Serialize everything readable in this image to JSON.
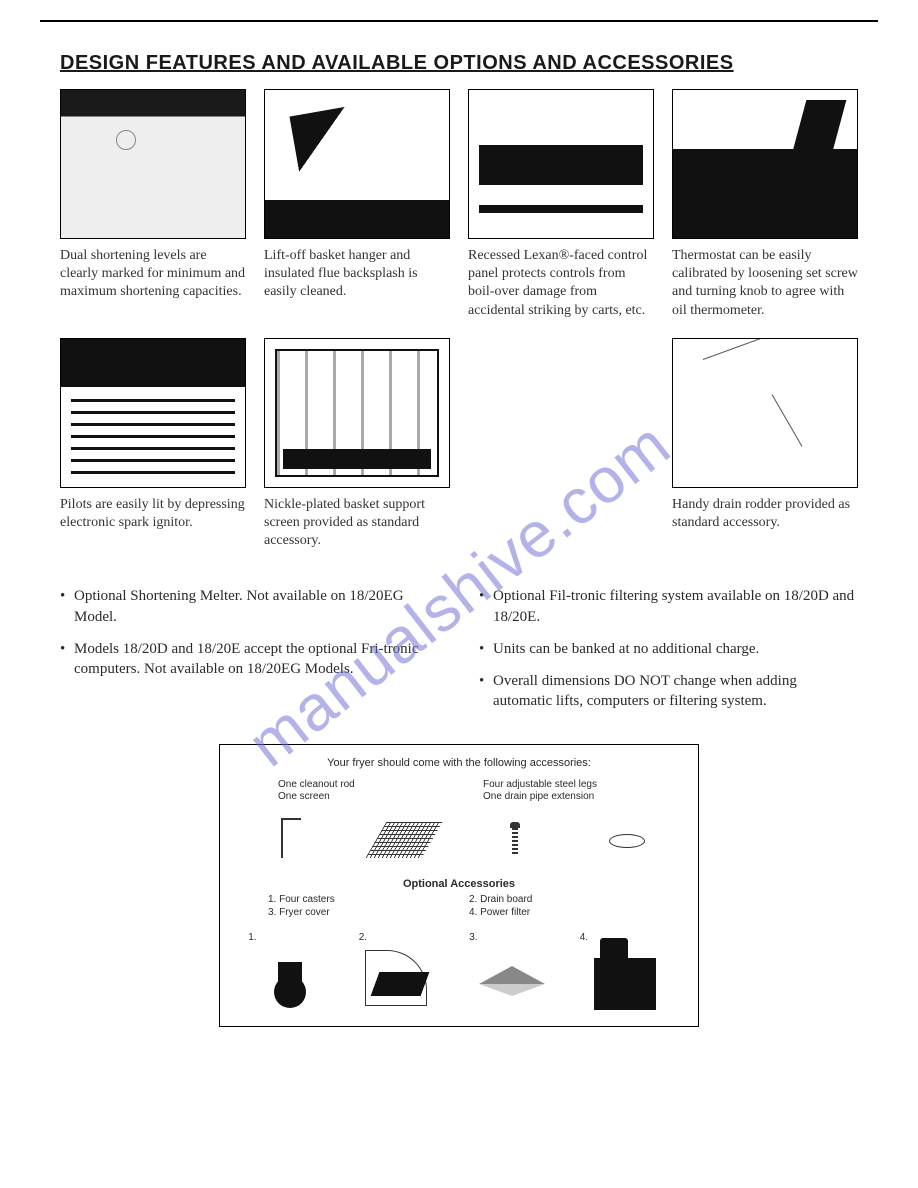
{
  "title": "DESIGN FEATURES AND AVAILABLE OPTIONS AND ACCESSORIES",
  "watermark": "manualshive.com",
  "features": [
    {
      "caption": "Dual shortening levels are clearly marked for mini­mum and maximum shortening capacities.",
      "img_class": "img1"
    },
    {
      "caption": "Lift-off basket hanger and insulated flue backsplash is easily cleaned.",
      "img_class": "img2"
    },
    {
      "caption": "Recessed Lexan®-faced control panel protects controls from boil-over damage from accidental striking by carts, etc.",
      "img_class": "img3"
    },
    {
      "caption": "Thermostat can be easily calibrated by loosening set screw and turning knob to agree with oil thermometer.",
      "img_class": "img4"
    },
    {
      "caption": "Pilots are easily lit by depressing electronic spark ignitor.",
      "img_class": "img5"
    },
    {
      "caption": "Nickle-plated basket support screen provided as standard accessory.",
      "img_class": "img6"
    },
    {
      "caption": "",
      "img_class": "placeholder"
    },
    {
      "caption": "Handy drain rodder provided as standard acces­sory.",
      "img_class": "img7"
    }
  ],
  "bullets_left": [
    "Optional Shortening Melter. Not available on 18/20EG Model.",
    "Models 18/20D and 18/20E accept the optional Fri-tronic computers. Not available on 18/20EG Models."
  ],
  "bullets_right": [
    "Optional Fil-tronic filtering system available on 18/20D and 18/20E.",
    "Units can be banked at no additional charge.",
    "Overall dimensions DO NOT change when adding automatic lifts, computers or filtering system."
  ],
  "accessories": {
    "heading": "Your fryer should come with the following accessories:",
    "label_left": "One cleanout rod\nOne screen",
    "label_right": "Four adjustable steel legs\nOne drain pipe extension",
    "optional_title": "Optional Accessories",
    "optional_items": [
      "1. Four casters",
      "2. Drain board",
      "3. Fryer cover",
      "4. Power filter"
    ],
    "opt_icons": [
      "1.",
      "2.",
      "3.",
      "4."
    ]
  },
  "colors": {
    "text": "#2a2a2a",
    "watermark": "#6a6ad4",
    "border": "#000000",
    "background": "#ffffff"
  }
}
